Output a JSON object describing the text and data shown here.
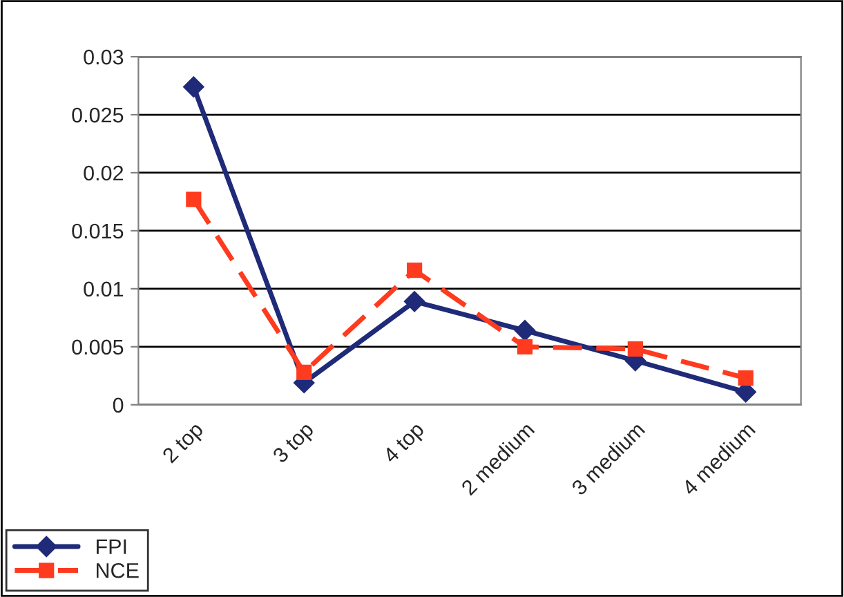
{
  "chart_data": {
    "type": "line",
    "categories": [
      "2 top",
      "3 top",
      "4 top",
      "2 medium",
      "3 medium",
      "4 medium"
    ],
    "series": [
      {
        "name": "FPI",
        "color": "#1f2a78",
        "marker": "diamond",
        "line_style": "solid",
        "values": [
          0.0274,
          0.0019,
          0.0089,
          0.0064,
          0.0038,
          0.0011
        ]
      },
      {
        "name": "NCE",
        "color": "#ff3b1f",
        "marker": "square",
        "line_style": "dashed",
        "values": [
          0.0177,
          0.0028,
          0.0116,
          0.005,
          0.0048,
          0.0023
        ]
      }
    ],
    "ylim": [
      0,
      0.03
    ],
    "yticks": [
      {
        "value": 0,
        "label": "0"
      },
      0.005,
      0.01,
      0.015,
      0.02,
      0.025,
      0.03
    ],
    "grid": "y",
    "legend": "bottom left"
  }
}
